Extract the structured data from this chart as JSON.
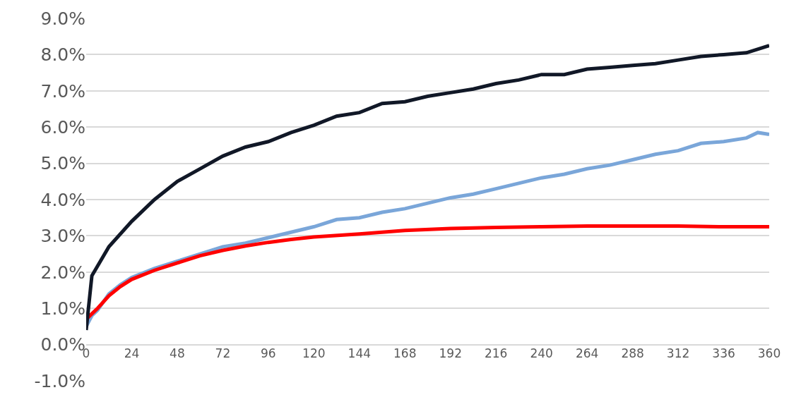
{
  "chart_data": {
    "type": "line",
    "xlim": [
      0,
      360
    ],
    "xticks": [
      0,
      24,
      48,
      72,
      96,
      120,
      144,
      168,
      192,
      216,
      240,
      264,
      288,
      312,
      336,
      360
    ],
    "ylim": [
      -1,
      9
    ],
    "yticks": [
      {
        "value": -1,
        "label": "-1.0%"
      },
      {
        "value": 0,
        "label": "0.0%"
      },
      {
        "value": 1,
        "label": "1.0%"
      },
      {
        "value": 2,
        "label": "2.0%"
      },
      {
        "value": 3,
        "label": "3.0%"
      },
      {
        "value": 4,
        "label": "4.0%"
      },
      {
        "value": 5,
        "label": "5.0%"
      },
      {
        "value": 6,
        "label": "6.0%"
      },
      {
        "value": 7,
        "label": "7.0%"
      },
      {
        "value": 8,
        "label": "8.0%"
      },
      {
        "value": 9,
        "label": "9.0%"
      }
    ],
    "grid": "y",
    "marker": "none",
    "line_style": "solid",
    "series": [
      {
        "color": "#7aa6d9",
        "x": [
          0,
          3,
          6,
          12,
          18,
          24,
          36,
          48,
          60,
          72,
          84,
          96,
          108,
          120,
          132,
          144,
          156,
          168,
          180,
          192,
          204,
          216,
          228,
          240,
          252,
          264,
          276,
          288,
          300,
          312,
          324,
          336,
          348,
          354,
          360
        ],
        "values": [
          0.5,
          0.8,
          0.95,
          1.4,
          1.65,
          1.85,
          2.1,
          2.3,
          2.5,
          2.7,
          2.8,
          2.95,
          3.1,
          3.25,
          3.45,
          3.5,
          3.65,
          3.75,
          3.9,
          4.05,
          4.15,
          4.3,
          4.45,
          4.6,
          4.7,
          4.85,
          4.95,
          5.1,
          5.25,
          5.35,
          5.55,
          5.6,
          5.7,
          5.85,
          5.8
        ]
      },
      {
        "color": "#ff0000",
        "x": [
          0,
          3,
          6,
          12,
          18,
          24,
          36,
          48,
          60,
          72,
          84,
          96,
          108,
          120,
          144,
          168,
          192,
          216,
          240,
          264,
          288,
          312,
          336,
          360
        ],
        "values": [
          0.7,
          0.85,
          1.0,
          1.35,
          1.6,
          1.8,
          2.05,
          2.25,
          2.45,
          2.6,
          2.72,
          2.82,
          2.9,
          2.97,
          3.05,
          3.15,
          3.2,
          3.23,
          3.25,
          3.27,
          3.27,
          3.27,
          3.25,
          3.25
        ]
      },
      {
        "color": "#111827",
        "x": [
          0,
          3,
          12,
          24,
          36,
          48,
          60,
          72,
          84,
          96,
          108,
          120,
          132,
          144,
          156,
          168,
          180,
          192,
          204,
          216,
          228,
          240,
          252,
          264,
          276,
          288,
          300,
          312,
          324,
          336,
          348,
          360
        ],
        "values": [
          0.4,
          1.9,
          2.7,
          3.4,
          4.0,
          4.5,
          4.85,
          5.2,
          5.45,
          5.6,
          5.85,
          6.05,
          6.3,
          6.4,
          6.65,
          6.7,
          6.85,
          6.95,
          7.05,
          7.2,
          7.3,
          7.45,
          7.45,
          7.6,
          7.65,
          7.7,
          7.75,
          7.85,
          7.95,
          8.0,
          8.05,
          8.25
        ]
      }
    ]
  }
}
